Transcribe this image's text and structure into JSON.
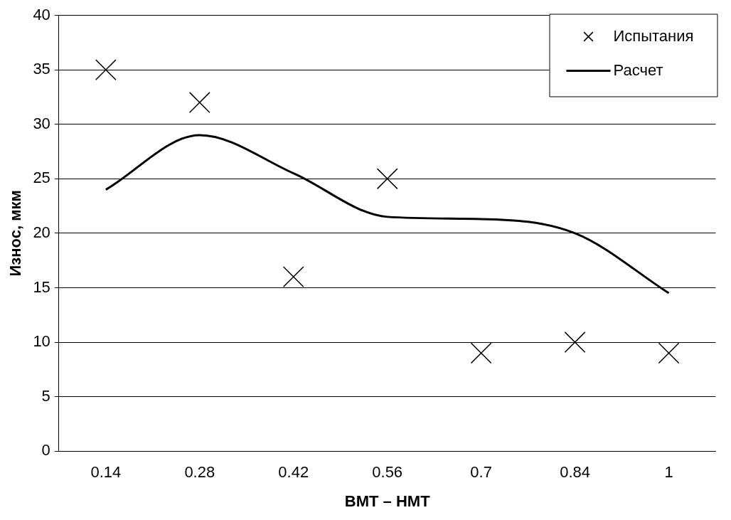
{
  "chart_data": {
    "type": "line",
    "xlabel": "ВМТ – НМТ",
    "ylabel": "Износ, мкм",
    "categories": [
      "0.14",
      "0.28",
      "0.42",
      "0.56",
      "0.7",
      "0.84",
      "1"
    ],
    "series": [
      {
        "name": "Испытания",
        "type": "scatter",
        "color": "#000000",
        "marker": "cross",
        "x": [
          "0.14",
          "0.28",
          "0.42",
          "0.56",
          "0.7",
          "0.84",
          "1"
        ],
        "values": [
          35,
          32,
          16,
          25,
          9,
          10,
          9
        ]
      },
      {
        "name": "Расчет",
        "type": "line",
        "color": "#000000",
        "marker": "none",
        "line_style": "solid",
        "values": [
          24,
          29,
          25.5,
          21.5,
          21.3,
          20,
          14.5
        ]
      }
    ],
    "ylim": [
      0,
      40
    ],
    "yticks": [
      0,
      5,
      10,
      15,
      20,
      25,
      30,
      35,
      40
    ],
    "grid": "y",
    "legend": "top right"
  }
}
